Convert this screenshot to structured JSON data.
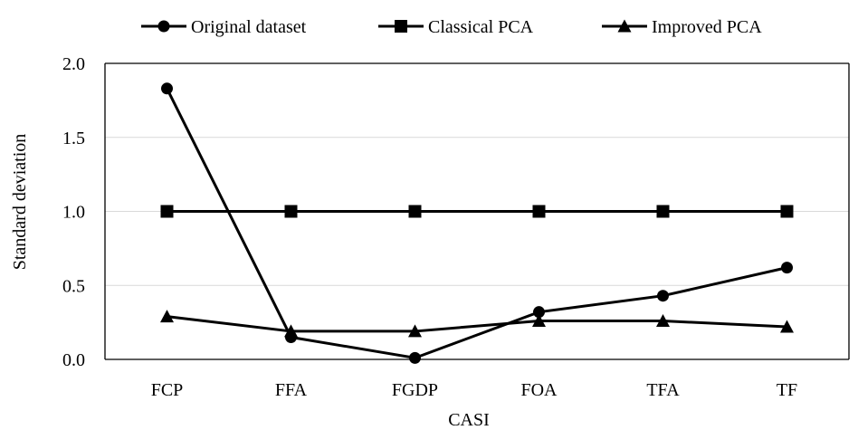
{
  "chart_data": {
    "type": "line",
    "categories": [
      "FCP",
      "FFA",
      "FGDP",
      "FOA",
      "TFA",
      "TF"
    ],
    "xlabel": "CASI",
    "ylabel": "Standard deviation",
    "ylim": [
      0,
      2
    ],
    "yticks": [
      "0.0",
      "0.5",
      "1.0",
      "1.5",
      "2.0"
    ],
    "grid": true,
    "legend_position": "top",
    "series": [
      {
        "name": "Original dataset",
        "marker": "circle",
        "color": "#000000",
        "values": [
          1.83,
          0.15,
          0.01,
          0.32,
          0.43,
          0.62
        ]
      },
      {
        "name": "Classical PCA",
        "marker": "square",
        "color": "#000000",
        "values": [
          1.0,
          1.0,
          1.0,
          1.0,
          1.0,
          1.0
        ]
      },
      {
        "name": "Improved PCA",
        "marker": "triangle",
        "color": "#000000",
        "values": [
          0.29,
          0.19,
          0.19,
          0.26,
          0.26,
          0.22
        ]
      }
    ]
  }
}
